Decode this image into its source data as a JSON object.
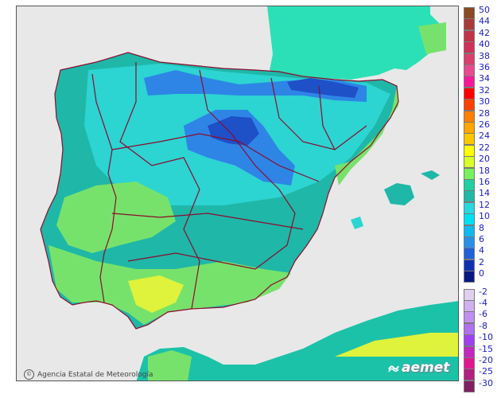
{
  "map": {
    "credit_text": "Agencia Estatal de Meteorología",
    "credit_icon": "circle-c-logo",
    "brand_logo_text": "aemet",
    "brand_icon": "sun-wave-logo",
    "colors": {
      "sea": "#e8e8e8",
      "border": "#8b0c2e",
      "teal": "#1fb7a8",
      "cyan": "#2cd4d2",
      "green": "#77e26b",
      "yellow": "#dff23c",
      "blue": "#2e85e6",
      "dark_blue": "#1e50c8",
      "france": "#2be0b6",
      "africa": "#1cc2a8"
    }
  },
  "legend": {
    "labels": [
      "50",
      "44",
      "42",
      "40",
      "38",
      "36",
      "34",
      "32",
      "30",
      "28",
      "26",
      "24",
      "22",
      "20",
      "18",
      "16",
      "14",
      "12",
      "10",
      "8",
      "6",
      "4",
      "2",
      "0",
      "-2",
      "-4",
      "-6",
      "-8",
      "-10",
      "-15",
      "-20",
      "-25",
      "-30"
    ],
    "colors": [
      "#8a4a22",
      "#a83a3a",
      "#c03448",
      "#d0305a",
      "#d8406e",
      "#e84a8e",
      "#f8189a",
      "#ff0000",
      "#ff4000",
      "#ff8000",
      "#ffa600",
      "#ffc800",
      "#ffff00",
      "#d8ff28",
      "#78f060",
      "#20d0a0",
      "#20b8a8",
      "#28d8e0",
      "#00e0f0",
      "#10b8f0",
      "#2890e8",
      "#2060d8",
      "#1030b0",
      "#081880",
      "#e0d0f0",
      "#d0b0f0",
      "#c090f0",
      "#b070f0",
      "#a040f0",
      "#c028c0",
      "#e01890",
      "#b02080",
      "#802060"
    ]
  }
}
